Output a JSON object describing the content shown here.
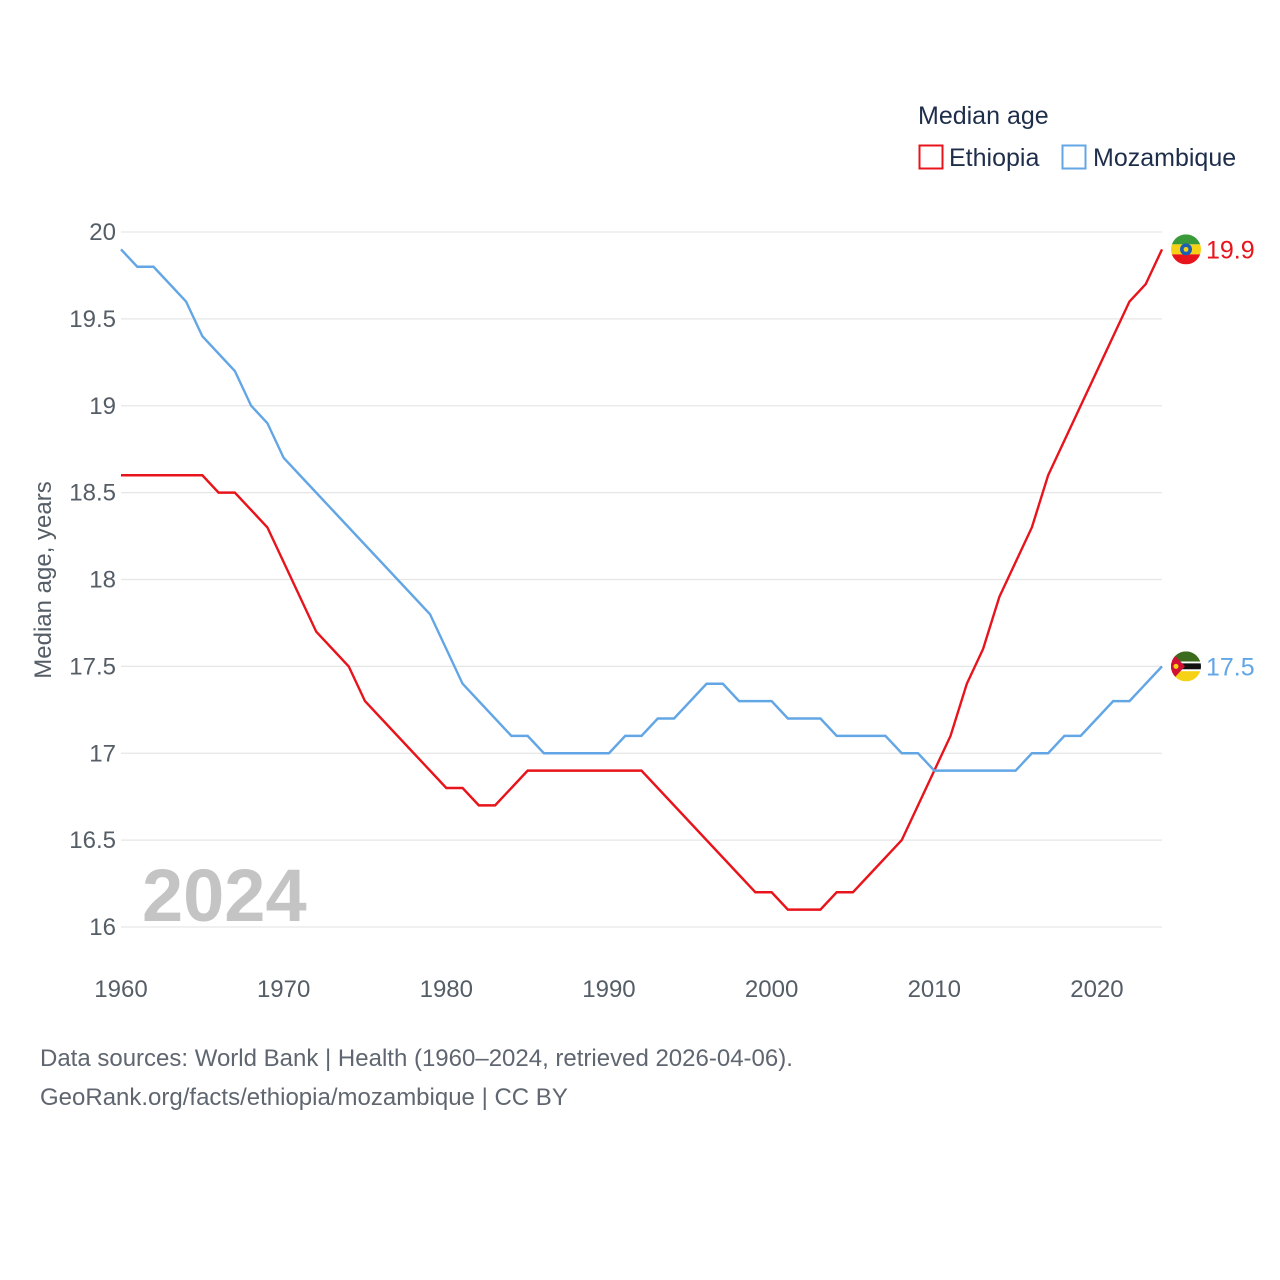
{
  "chart_data": {
    "type": "line",
    "title": "",
    "xlabel": "",
    "ylabel": "Median age, years",
    "year_label": "2024",
    "xlim": [
      1960,
      2024
    ],
    "ylim": [
      16,
      20
    ],
    "x_ticks": [
      "1960",
      "1970",
      "1980",
      "1990",
      "2000",
      "2010",
      "2020"
    ],
    "y_ticks": [
      "16",
      "16.5",
      "17",
      "17.5",
      "18",
      "18.5",
      "19",
      "19.5",
      "20"
    ],
    "legend": {
      "title": "Median age",
      "placement": "top-right"
    },
    "x": [
      1960,
      1961,
      1962,
      1963,
      1964,
      1965,
      1966,
      1967,
      1968,
      1969,
      1970,
      1971,
      1972,
      1973,
      1974,
      1975,
      1976,
      1977,
      1978,
      1979,
      1980,
      1981,
      1982,
      1983,
      1984,
      1985,
      1986,
      1987,
      1988,
      1989,
      1990,
      1991,
      1992,
      1993,
      1994,
      1995,
      1996,
      1997,
      1998,
      1999,
      2000,
      2001,
      2002,
      2003,
      2004,
      2005,
      2006,
      2007,
      2008,
      2009,
      2010,
      2011,
      2012,
      2013,
      2014,
      2015,
      2016,
      2017,
      2018,
      2019,
      2020,
      2021,
      2022,
      2023,
      2024
    ],
    "series": [
      {
        "name": "Ethiopia",
        "color": "#e8141c",
        "end_label": "19.9",
        "values": [
          18.6,
          18.6,
          18.6,
          18.6,
          18.6,
          18.6,
          18.5,
          18.5,
          18.4,
          18.3,
          18.1,
          17.9,
          17.7,
          17.6,
          17.5,
          17.3,
          17.2,
          17.1,
          17.0,
          16.9,
          16.8,
          16.8,
          16.7,
          16.7,
          16.8,
          16.9,
          16.9,
          16.9,
          16.9,
          16.9,
          16.9,
          16.9,
          16.9,
          16.8,
          16.7,
          16.6,
          16.5,
          16.4,
          16.3,
          16.2,
          16.2,
          16.1,
          16.1,
          16.1,
          16.2,
          16.2,
          16.3,
          16.4,
          16.5,
          16.7,
          16.9,
          17.1,
          17.4,
          17.6,
          17.9,
          18.1,
          18.3,
          18.6,
          18.8,
          19.0,
          19.2,
          19.4,
          19.6,
          19.7,
          19.9
        ]
      },
      {
        "name": "Mozambique",
        "color": "#63a6e6",
        "end_label": "17.5",
        "values": [
          19.9,
          19.8,
          19.8,
          19.7,
          19.6,
          19.4,
          19.3,
          19.2,
          19.0,
          18.9,
          18.7,
          18.6,
          18.5,
          18.4,
          18.3,
          18.2,
          18.1,
          18.0,
          17.9,
          17.8,
          17.6,
          17.4,
          17.3,
          17.2,
          17.1,
          17.1,
          17.0,
          17.0,
          17.0,
          17.0,
          17.0,
          17.1,
          17.1,
          17.2,
          17.2,
          17.3,
          17.4,
          17.4,
          17.3,
          17.3,
          17.3,
          17.2,
          17.2,
          17.2,
          17.1,
          17.1,
          17.1,
          17.1,
          17.0,
          17.0,
          16.9,
          16.9,
          16.9,
          16.9,
          16.9,
          16.9,
          17.0,
          17.0,
          17.1,
          17.1,
          17.2,
          17.3,
          17.3,
          17.4,
          17.5
        ]
      }
    ],
    "flag_colors": {
      "ethiopia": {
        "green": "#3a9a3a",
        "yellow": "#f5d215",
        "red": "#e8141c",
        "emblem": "#1a5fb4",
        "star": "#f5d215"
      },
      "mozambique": {
        "green": "#3d6b1e",
        "black": "#111111",
        "white": "#ffffff",
        "yellow": "#f5d215",
        "red": "#d21034"
      }
    },
    "grid": true,
    "grid_color": "#e6e6e6",
    "tick_color": "#555d66",
    "legend_text_color": "#1e2e4a"
  },
  "footer": {
    "sources": "Data sources: World Bank | Health (1960–2024, retrieved 2026-04-06).",
    "credit": "GeoRank.org/facts/ethiopia/mozambique | CC BY"
  }
}
